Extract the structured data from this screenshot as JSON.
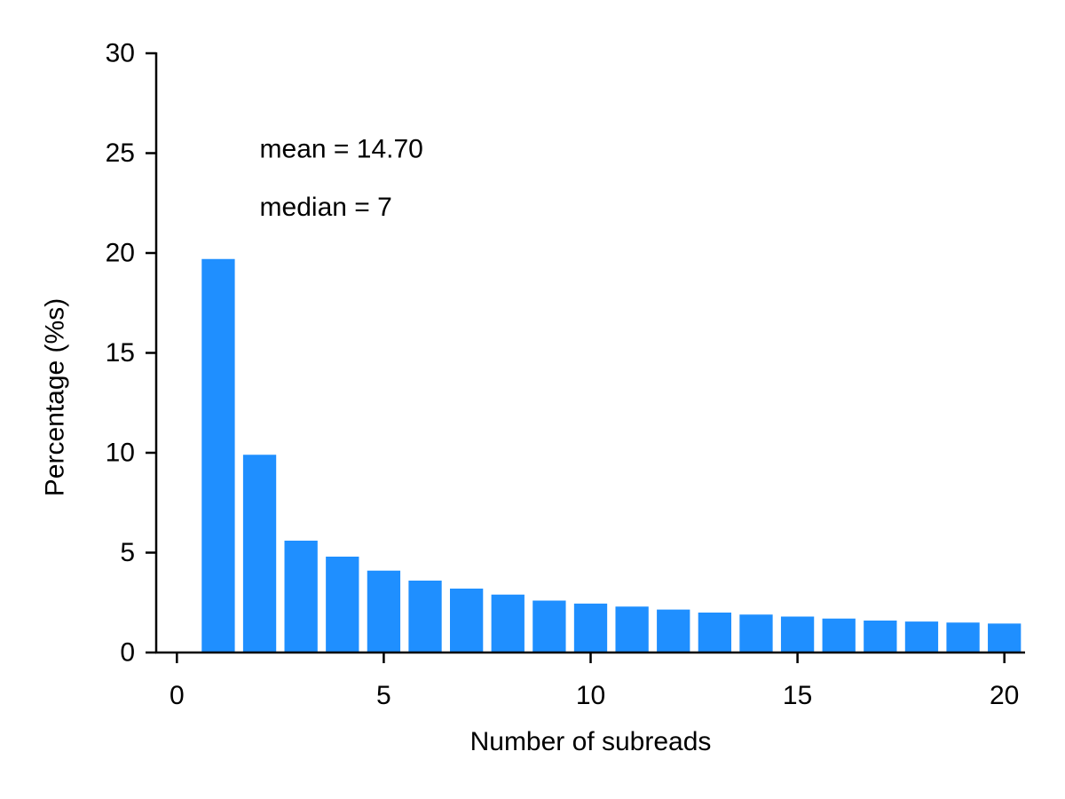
{
  "chart_data": {
    "type": "bar",
    "x": [
      1,
      2,
      3,
      4,
      5,
      6,
      7,
      8,
      9,
      10,
      11,
      12,
      13,
      14,
      15,
      16,
      17,
      18,
      19,
      20
    ],
    "values": [
      19.7,
      9.9,
      5.6,
      4.8,
      4.1,
      3.6,
      3.2,
      2.9,
      2.6,
      2.45,
      2.3,
      2.15,
      2.0,
      1.9,
      1.8,
      1.7,
      1.6,
      1.55,
      1.5,
      1.45
    ],
    "xlabel": "Number of subreads",
    "ylabel": "Percentage (%s)",
    "xlim": [
      -0.5,
      20.5
    ],
    "ylim": [
      0,
      30
    ],
    "xticks": [
      0,
      5,
      10,
      15,
      20
    ],
    "xtick_labels": [
      "0",
      "5",
      "10",
      "15",
      "20"
    ],
    "yticks": [
      0,
      5,
      10,
      15,
      20,
      25,
      30
    ],
    "ytick_labels": [
      "0",
      "5",
      "10",
      "15",
      "20",
      "25",
      "30"
    ],
    "annotations": [
      {
        "text": "mean = 14.70",
        "x": 2,
        "y": 25.2
      },
      {
        "text": "median = 7",
        "x": 2,
        "y": 22.3
      }
    ],
    "bar_color": "#1f8fff",
    "grid": false,
    "spines": [
      "left",
      "bottom"
    ]
  }
}
